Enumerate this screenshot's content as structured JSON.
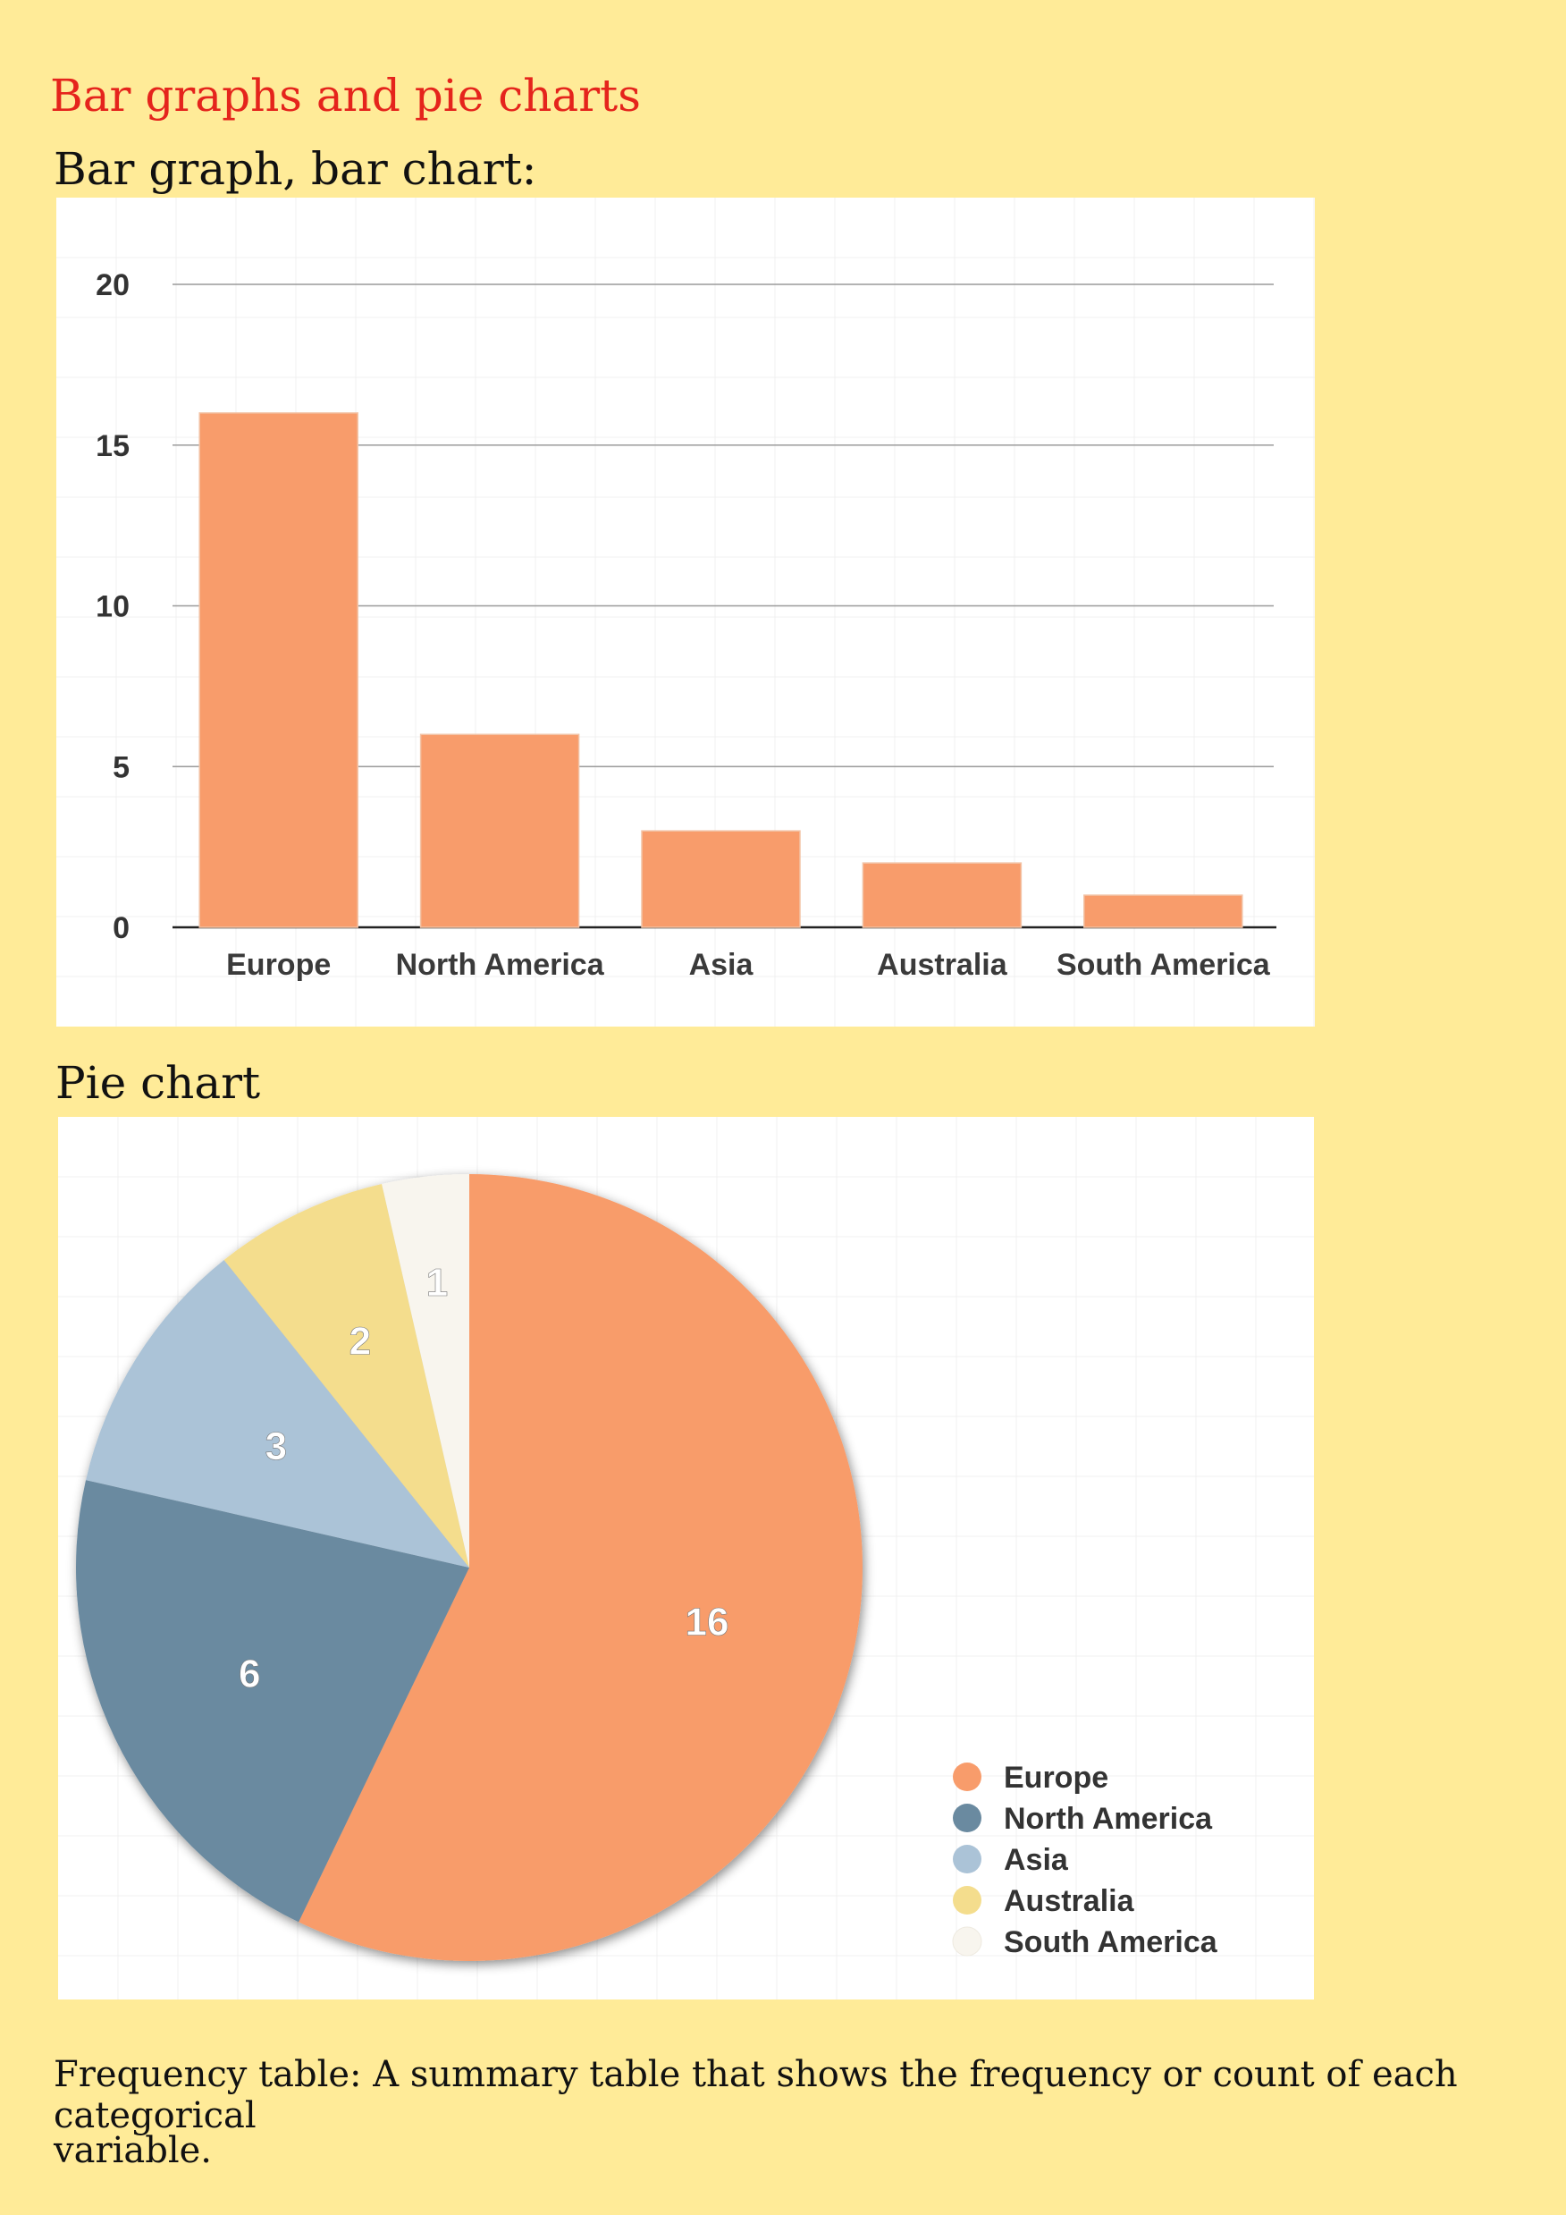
{
  "page": {
    "title": "Bar graphs and pie charts",
    "bar_heading": "Bar graph, bar chart:",
    "pie_heading": "Pie chart",
    "note_line1": "Frequency table: A summary table that shows the frequency or count of each categorical",
    "note_line2": "variable."
  },
  "colors": {
    "page_background": "#ffeb98",
    "title": "#e5241c",
    "bar": "#f89c6b"
  },
  "chart_data": [
    {
      "type": "bar",
      "categories": [
        "Europe",
        "North America",
        "Asia",
        "Australia",
        "South America"
      ],
      "values": [
        16,
        6,
        3,
        2,
        1
      ],
      "ylim": [
        0,
        20
      ],
      "yticks": [
        0,
        5,
        10,
        15,
        20
      ],
      "grid": true,
      "color": "#f89c6b"
    },
    {
      "type": "pie",
      "categories": [
        "Europe",
        "North America",
        "Asia",
        "Australia",
        "South America"
      ],
      "values": [
        16,
        6,
        3,
        2,
        1
      ],
      "labels": [
        "16",
        "6",
        "3",
        "2",
        "1"
      ],
      "colors": [
        "#f89c6b",
        "#6a8aa0",
        "#abc3d7",
        "#f4dd8d",
        "#f8f5ee"
      ],
      "legend": "bottom-right"
    }
  ]
}
